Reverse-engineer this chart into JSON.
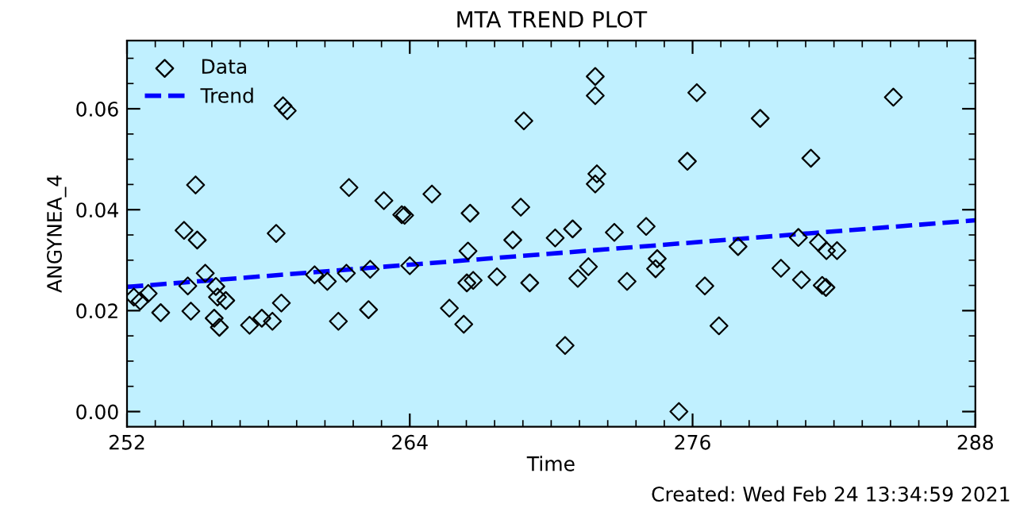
{
  "chart_data": {
    "type": "scatter",
    "title": "MTA TREND PLOT",
    "xlabel": "Time",
    "ylabel": "ANGYNEA_4",
    "annotations": [
      "Created: Wed Feb 24 13:34:59 2021"
    ],
    "xlim": [
      252,
      288
    ],
    "xticks": [
      252,
      264,
      276,
      288
    ],
    "ylim": [
      -0.003,
      0.0735
    ],
    "yticks": [
      {
        "value": 0,
        "label": "0.00"
      },
      {
        "value": 0.02,
        "label": "0.02"
      },
      {
        "value": 0.04,
        "label": "0.04"
      },
      {
        "value": 0.06,
        "label": "0.06"
      }
    ],
    "legend": "top left",
    "grid": false,
    "series": [
      {
        "name": "Data",
        "marker": "diamond",
        "color": "#000000",
        "x": [
          252.29,
          252.56,
          252.9,
          253.43,
          254.42,
          254.91,
          254.98,
          254.58,
          254.71,
          255.32,
          255.77,
          255.84,
          256.19,
          255.7,
          255.92,
          258.62,
          258.8,
          258.33,
          257.2,
          257.72,
          258.17,
          258.55,
          259.96,
          260.5,
          260.97,
          261.42,
          261.31,
          262.32,
          262.25,
          262.9,
          263.66,
          263.78,
          264.0,
          264.94,
          266.56,
          266.47,
          266.42,
          266.69,
          265.68,
          266.29,
          267.7,
          268.37,
          268.71,
          268.84,
          269.09,
          270.17,
          270.59,
          270.91,
          271.13,
          271.58,
          271.87,
          271.87,
          271.94,
          271.87,
          272.68,
          273.22,
          274.03,
          274.5,
          274.43,
          275.42,
          275.78,
          276.18,
          276.52,
          277.12,
          277.93,
          278.87,
          279.75,
          280.49,
          280.62,
          281.02,
          281.34,
          281.68,
          282.13,
          281.5,
          281.66,
          284.52
        ],
        "values": [
          0.0227,
          0.0219,
          0.0234,
          0.0196,
          0.0359,
          0.0449,
          0.034,
          0.0249,
          0.0199,
          0.0274,
          0.0248,
          0.0227,
          0.022,
          0.0185,
          0.0167,
          0.0606,
          0.0596,
          0.0353,
          0.0171,
          0.0185,
          0.0179,
          0.0215,
          0.0271,
          0.0258,
          0.0179,
          0.0444,
          0.0274,
          0.0282,
          0.0202,
          0.0418,
          0.039,
          0.0389,
          0.0289,
          0.0431,
          0.0393,
          0.0318,
          0.0255,
          0.026,
          0.0205,
          0.0173,
          0.0267,
          0.034,
          0.0405,
          0.0576,
          0.0255,
          0.0344,
          0.0131,
          0.0362,
          0.0264,
          0.0287,
          0.0664,
          0.0626,
          0.0471,
          0.0451,
          0.0355,
          0.0258,
          0.0367,
          0.0303,
          0.0283,
          0.0,
          0.0496,
          0.0632,
          0.0249,
          0.017,
          0.0327,
          0.0581,
          0.0284,
          0.0345,
          0.0261,
          0.0502,
          0.0335,
          0.0319,
          0.0319,
          0.025,
          0.0246,
          0.0623
        ]
      },
      {
        "name": "Trend",
        "type": "line",
        "marker": "none",
        "line_style": "dashed",
        "color": "#0000ff",
        "x": [
          252,
          288
        ],
        "values": [
          0.0247,
          0.0379
        ]
      }
    ]
  }
}
